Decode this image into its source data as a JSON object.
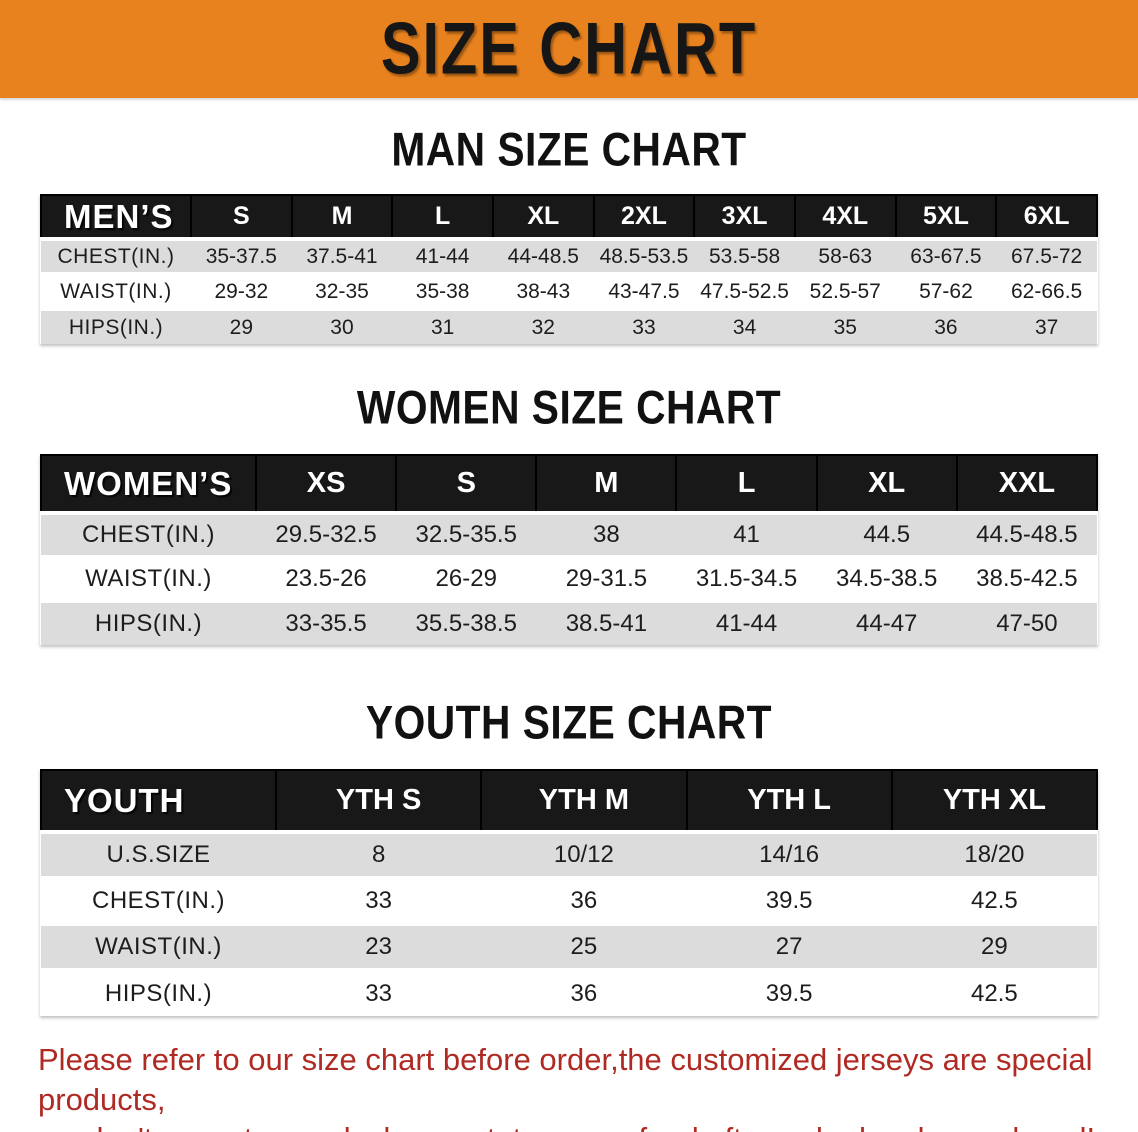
{
  "banner": {
    "title": "SIZE CHART"
  },
  "colors": {
    "banner-bg": "#E8821E",
    "banner-text": "#161616",
    "header-bg": "#181818",
    "row-gray": "#dcdcdc",
    "disclaimer-red": "#B02A24"
  },
  "sections": [
    {
      "heading": "MAN SIZE CHART",
      "table": {
        "label": "MEN’S",
        "columns": [
          "S",
          "M",
          "L",
          "XL",
          "2XL",
          "3XL",
          "4XL",
          "5XL",
          "6XL"
        ],
        "rows": [
          {
            "label": "CHEST(IN.)",
            "values": [
              "35-37.5",
              "37.5-41",
              "41-44",
              "44-48.5",
              "48.5-53.5",
              "53.5-58",
              "58-63",
              "63-67.5",
              "67.5-72"
            ]
          },
          {
            "label": "WAIST(IN.)",
            "values": [
              "29-32",
              "32-35",
              "35-38",
              "38-43",
              "43-47.5",
              "47.5-52.5",
              "52.5-57",
              "57-62",
              "62-66.5"
            ]
          },
          {
            "label": "HIPS(IN.)",
            "values": [
              "29",
              "30",
              "31",
              "32",
              "33",
              "34",
              "35",
              "36",
              "37"
            ]
          }
        ]
      }
    },
    {
      "heading": "WOMEN SIZE CHART",
      "table": {
        "label": "WOMEN’S",
        "columns": [
          "XS",
          "S",
          "M",
          "L",
          "XL",
          "XXL"
        ],
        "rows": [
          {
            "label": "CHEST(IN.)",
            "values": [
              "29.5-32.5",
              "32.5-35.5",
              "38",
              "41",
              "44.5",
              "44.5-48.5"
            ]
          },
          {
            "label": "WAIST(IN.)",
            "values": [
              "23.5-26",
              "26-29",
              "29-31.5",
              "31.5-34.5",
              "34.5-38.5",
              "38.5-42.5"
            ]
          },
          {
            "label": "HIPS(IN.)",
            "values": [
              "33-35.5",
              "35.5-38.5",
              "38.5-41",
              "41-44",
              "44-47",
              "47-50"
            ]
          }
        ]
      }
    },
    {
      "heading": "YOUTH SIZE CHART",
      "table": {
        "label": "YOUTH",
        "columns": [
          "YTH S",
          "YTH M",
          "YTH L",
          "YTH XL"
        ],
        "rows": [
          {
            "label": "U.S.SIZE",
            "values": [
              "8",
              "10/12",
              "14/16",
              "18/20"
            ]
          },
          {
            "label": "CHEST(IN.)",
            "values": [
              "33",
              "36",
              "39.5",
              "42.5"
            ]
          },
          {
            "label": "WAIST(IN.)",
            "values": [
              "23",
              "25",
              "27",
              "29"
            ]
          },
          {
            "label": "HIPS(IN.)",
            "values": [
              "33",
              "36",
              "39.5",
              "42.5"
            ]
          }
        ]
      }
    }
  ],
  "disclaimer": {
    "line1": "Please refer to our size chart before order,the customized jerseys are special products,",
    "line2": "we don't accept cancel, change, teturn or refund after order has been placed!"
  }
}
